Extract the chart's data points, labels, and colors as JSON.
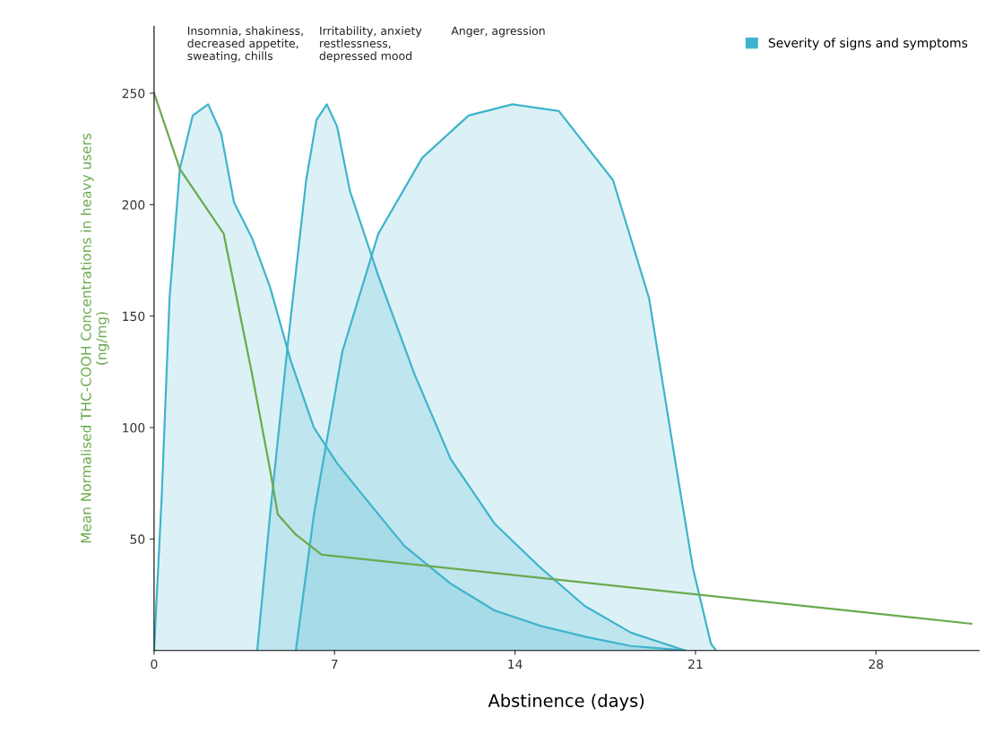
{
  "chart_data": {
    "type": "area",
    "xlabel": "Abstinence (days)",
    "ylabel": "Mean Normalised THC-COOH Concentrations in heavy users\n(ng/mg)",
    "xlim": [
      0,
      32
    ],
    "ylim": [
      0,
      280
    ],
    "xticks": [
      0,
      7,
      14,
      21,
      28
    ],
    "yticks": [
      50,
      100,
      150,
      200,
      250
    ],
    "grid": false,
    "legend": "top right",
    "series": [
      {
        "name": "Severity of signs and symptoms",
        "color": "#3fb4cc",
        "x": [
          0,
          0.3,
          0.6,
          1.0,
          1.5,
          2.1,
          2.6,
          3.1,
          3.8,
          4.5,
          5.3,
          6.2,
          7.1,
          8.0,
          9.7,
          11.5,
          13.2,
          15.0,
          16.8,
          18.5,
          20.6
        ],
        "values": [
          0,
          70,
          158,
          216,
          240,
          245,
          232,
          201,
          185,
          163,
          130,
          100,
          84,
          71,
          47,
          30,
          18,
          11,
          6,
          2,
          0
        ]
      },
      {
        "color": "#3fb4cc",
        "x": [
          4.0,
          4.5,
          5.2,
          5.9,
          6.3,
          6.7,
          7.1,
          7.6,
          8.7,
          10.1,
          11.5,
          13.2,
          15.0,
          16.7,
          18.5,
          20.6
        ],
        "values": [
          0,
          61,
          139,
          211,
          238,
          245,
          235,
          206,
          168,
          124,
          86,
          57,
          37,
          20,
          8,
          0
        ]
      },
      {
        "color": "#3fb4cc",
        "x": [
          5.5,
          6.2,
          7.3,
          8.7,
          10.4,
          12.2,
          13.9,
          15.7,
          17.8,
          19.2,
          20.2,
          20.9,
          21.6,
          21.8
        ],
        "values": [
          0,
          61,
          134,
          187,
          221,
          240,
          245,
          242,
          211,
          158,
          86,
          37,
          3,
          0
        ]
      },
      {
        "type": "line",
        "color": "#6aaa4e",
        "x": [
          0,
          1.0,
          2.7,
          3.8,
          4.5,
          4.8,
          5.5,
          6.5,
          31.7
        ],
        "values": [
          250,
          216,
          187,
          124,
          81,
          61,
          52,
          43,
          12
        ]
      }
    ],
    "annotations": [
      "Insomnia, shakiness,\ndecreased appetite,\nsweating, chills",
      "Irritability, anxiety\nrestlessness,\ndepressed mood",
      "Anger, agression"
    ]
  }
}
